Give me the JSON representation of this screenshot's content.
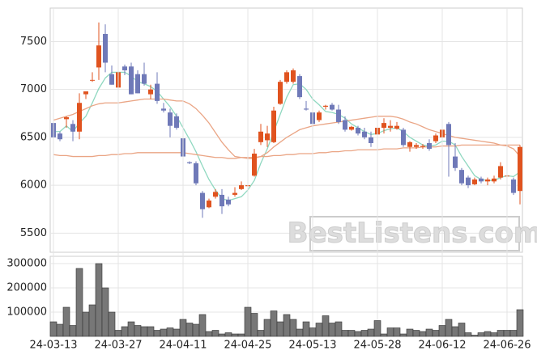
{
  "chart_data": [
    {
      "type": "candlestick",
      "open": [
        6650,
        6540,
        6690,
        6640,
        6560,
        6950,
        7100,
        7230,
        7580,
        7160,
        7020,
        7240,
        7240,
        7160,
        7160,
        6950,
        7060,
        6800,
        6760,
        6720,
        6490,
        6240,
        6230,
        5920,
        5770,
        5880,
        5900,
        5850,
        5900,
        5960,
        5990,
        6100,
        6450,
        6470,
        6450,
        6850,
        7080,
        7080,
        7140,
        6800,
        6760,
        6680,
        6820,
        6840,
        6790,
        6680,
        6580,
        6600,
        6560,
        6500,
        6530,
        6600,
        6600,
        6590,
        6580,
        6400,
        6400,
        6400,
        6440,
        6460,
        6500,
        6640,
        6300,
        6160,
        6080,
        6010,
        6070,
        6040,
        6040,
        6080,
        6100,
        6060,
        5940
      ],
      "high": [
        6680,
        6560,
        6720,
        6680,
        6960,
        6980,
        7180,
        7700,
        7680,
        7250,
        7200,
        7260,
        7280,
        7200,
        7280,
        7050,
        7180,
        6860,
        6800,
        6750,
        6520,
        6250,
        6250,
        5940,
        5860,
        5960,
        5960,
        5880,
        5980,
        6040,
        6020,
        6380,
        6640,
        6620,
        6820,
        7100,
        7200,
        7220,
        7160,
        6880,
        6800,
        6780,
        6840,
        6860,
        6840,
        6720,
        6620,
        6620,
        6600,
        6560,
        6620,
        6700,
        6680,
        6660,
        6600,
        6460,
        6440,
        6430,
        6480,
        6540,
        6600,
        6660,
        6440,
        6180,
        6100,
        6080,
        6090,
        6080,
        6100,
        6240,
        6120,
        6080,
        6420
      ],
      "low": [
        6480,
        6460,
        6600,
        6460,
        6480,
        6900,
        7080,
        7100,
        7180,
        7050,
        7000,
        7150,
        6950,
        6960,
        7040,
        6900,
        6850,
        6760,
        6500,
        6580,
        6270,
        6220,
        6000,
        5660,
        5760,
        5860,
        5700,
        5780,
        5880,
        5950,
        5980,
        6090,
        6420,
        6400,
        6440,
        6840,
        7060,
        7060,
        6900,
        6780,
        6600,
        6660,
        6790,
        6780,
        6640,
        6560,
        6570,
        6520,
        6480,
        6400,
        6510,
        6540,
        6560,
        6580,
        6400,
        6350,
        6380,
        6380,
        6360,
        6440,
        6480,
        6090,
        6150,
        6000,
        5970,
        6000,
        6020,
        6000,
        6020,
        6060,
        6080,
        5900,
        5800
      ],
      "close": [
        6500,
        6480,
        6710,
        6560,
        6860,
        6980,
        7100,
        7460,
        7280,
        7050,
        7180,
        7200,
        6950,
        6960,
        7060,
        7000,
        6880,
        6780,
        6620,
        6600,
        6300,
        6230,
        6020,
        5750,
        5840,
        5930,
        5780,
        5800,
        5920,
        6000,
        6000,
        6330,
        6560,
        6540,
        6780,
        7080,
        7180,
        7200,
        6920,
        6790,
        6640,
        6760,
        6830,
        6790,
        6660,
        6580,
        6610,
        6540,
        6500,
        6440,
        6600,
        6650,
        6620,
        6620,
        6420,
        6450,
        6420,
        6410,
        6380,
        6520,
        6580,
        6420,
        6180,
        6020,
        6000,
        6060,
        6040,
        6060,
        6070,
        6200,
        6100,
        5920,
        6400
      ],
      "up_color": "#e0531f",
      "down_color": "#6f79b8",
      "series": [
        {
          "color": "#8fd8c0",
          "values": [
            6560,
            6560,
            6620,
            6560,
            6650,
            6720,
            6860,
            7010,
            7120,
            7180,
            7180,
            7180,
            7140,
            7080,
            7060,
            7030,
            6980,
            6900,
            6820,
            6720,
            6600,
            6480,
            6350,
            6200,
            6060,
            5950,
            5860,
            5840,
            5860,
            5880,
            5950,
            6050,
            6230,
            6380,
            6560,
            6740,
            6920,
            7050,
            7060,
            7000,
            6900,
            6840,
            6770,
            6760,
            6740,
            6700,
            6640,
            6600,
            6560,
            6530,
            6540,
            6570,
            6590,
            6600,
            6560,
            6500,
            6460,
            6420,
            6410,
            6420,
            6460,
            6460,
            6420,
            6300,
            6200,
            6100,
            6060,
            6050,
            6050,
            6080,
            6100,
            6090,
            6140
          ]
        },
        {
          "color": "#eaa585",
          "values": [
            6680,
            6700,
            6720,
            6740,
            6770,
            6800,
            6830,
            6850,
            6860,
            6860,
            6860,
            6870,
            6880,
            6890,
            6900,
            6900,
            6900,
            6900,
            6890,
            6880,
            6880,
            6850,
            6800,
            6730,
            6650,
            6550,
            6450,
            6370,
            6300,
            6290,
            6280,
            6280,
            6300,
            6340,
            6400,
            6450,
            6500,
            6540,
            6580,
            6600,
            6620,
            6630,
            6640,
            6650,
            6660,
            6670,
            6680,
            6690,
            6700,
            6710,
            6720,
            6720,
            6720,
            6710,
            6690,
            6660,
            6640,
            6610,
            6580,
            6560,
            6540,
            6520,
            6500,
            6490,
            6480,
            6470,
            6460,
            6450,
            6440,
            6420,
            6410,
            6380,
            6300
          ]
        },
        {
          "color": "#eaa585",
          "values": [
            6320,
            6310,
            6310,
            6300,
            6300,
            6300,
            6300,
            6310,
            6310,
            6320,
            6320,
            6330,
            6330,
            6340,
            6340,
            6340,
            6340,
            6340,
            6340,
            6340,
            6340,
            6330,
            6320,
            6310,
            6300,
            6290,
            6290,
            6280,
            6280,
            6290,
            6290,
            6290,
            6300,
            6300,
            6310,
            6310,
            6320,
            6320,
            6330,
            6330,
            6330,
            6340,
            6340,
            6350,
            6350,
            6360,
            6360,
            6370,
            6370,
            6370,
            6370,
            6380,
            6380,
            6380,
            6390,
            6390,
            6390,
            6400,
            6400,
            6400,
            6410,
            6410,
            6410,
            6420,
            6420,
            6420,
            6420,
            6420,
            6420,
            6420,
            6420,
            6420,
            6420
          ]
        }
      ],
      "ylim": [
        5300,
        7850
      ],
      "yticks": [
        5500,
        6000,
        6500,
        7000,
        7500
      ],
      "grid": true,
      "watermark": "BestListens.com"
    },
    {
      "type": "bar",
      "categories": [
        "24-03-13",
        null,
        null,
        null,
        null,
        null,
        null,
        null,
        null,
        null,
        "24-03-27",
        null,
        null,
        null,
        null,
        null,
        null,
        null,
        null,
        null,
        "24-04-11",
        null,
        null,
        null,
        null,
        null,
        null,
        null,
        null,
        null,
        "24-04-25",
        null,
        null,
        null,
        null,
        null,
        null,
        null,
        null,
        null,
        "24-05-13",
        null,
        null,
        null,
        null,
        null,
        null,
        null,
        null,
        null,
        "24-05-28",
        null,
        null,
        null,
        null,
        null,
        null,
        null,
        null,
        null,
        "24-06-12",
        null,
        null,
        null,
        null,
        null,
        null,
        null,
        null,
        null,
        "24-06-26",
        null,
        null
      ],
      "values": [
        60000,
        50000,
        120000,
        45000,
        280000,
        100000,
        130000,
        300000,
        200000,
        100000,
        25000,
        40000,
        60000,
        45000,
        40000,
        40000,
        25000,
        30000,
        35000,
        30000,
        70000,
        55000,
        50000,
        90000,
        20000,
        25000,
        10000,
        15000,
        10000,
        10000,
        120000,
        95000,
        25000,
        70000,
        105000,
        60000,
        90000,
        70000,
        30000,
        60000,
        35000,
        55000,
        85000,
        55000,
        60000,
        25000,
        25000,
        20000,
        25000,
        30000,
        65000,
        10000,
        35000,
        35000,
        10000,
        30000,
        25000,
        20000,
        30000,
        25000,
        45000,
        70000,
        40000,
        55000,
        15000,
        5000,
        15000,
        20000,
        15000,
        25000,
        25000,
        25000,
        110000
      ],
      "color": "#777777",
      "ylim": [
        0,
        330000
      ],
      "yticks": [
        100000,
        200000,
        300000
      ],
      "grid": true
    }
  ]
}
